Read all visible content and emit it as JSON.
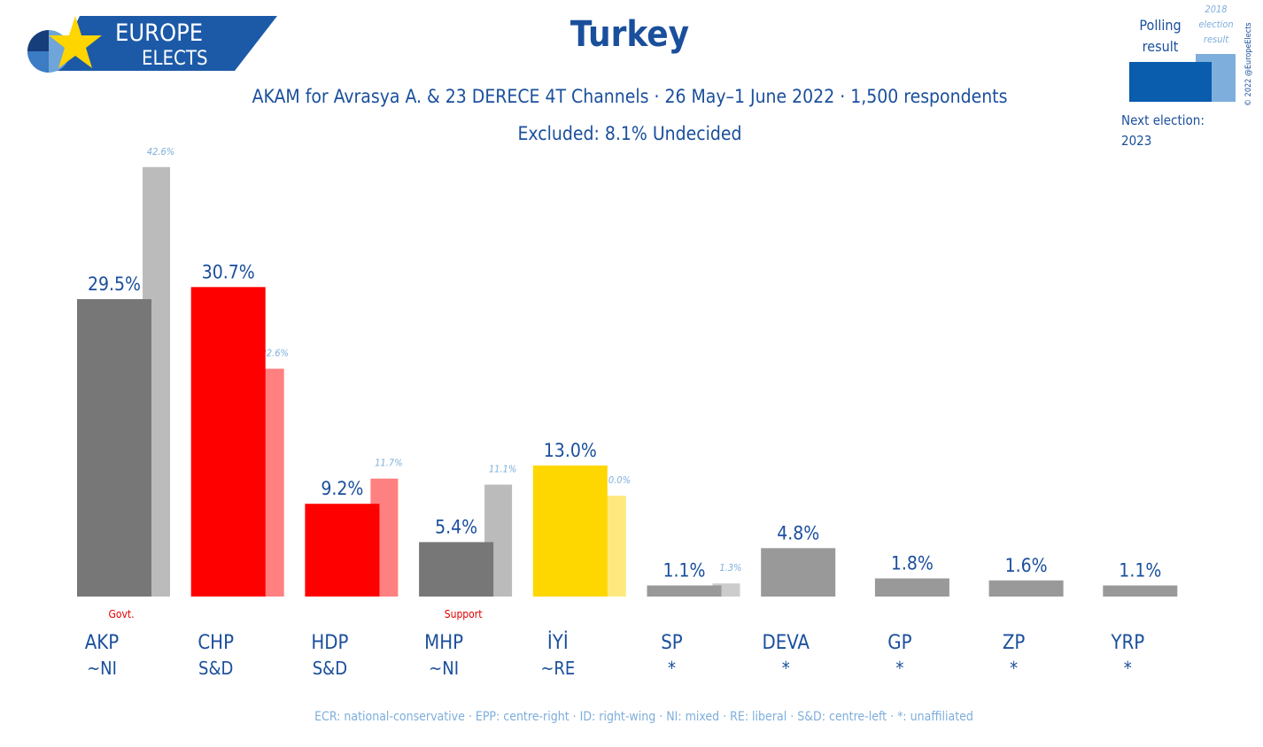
{
  "logo": {
    "line1": "EUROPE",
    "line2": "ELECTS"
  },
  "title": "Turkey",
  "subtitle": "AKAM for Avrasya A. & 23 DERECE 4T Channels · 26 May–1 June 2022 · 1,500 respondents",
  "excluded": "Excluded: 8.1% Undecided",
  "legend": {
    "polling": [
      "Polling",
      "result"
    ],
    "previous": [
      "2018",
      "election",
      "result"
    ],
    "copyright": "© 2022 @EuropeElects",
    "next_election_label": "Next election:",
    "next_election_year": "2023",
    "poll_color": "#0a5cad",
    "prev_color": "#7eaedb"
  },
  "footer": "ECR: national-conservative · EPP: centre-right · ID: right-wing · NI: mixed · RE: liberal · S&D: centre-left · *: unaffiliated",
  "chart_data": {
    "type": "bar",
    "categories": [
      "AKP",
      "CHP",
      "HDP",
      "MHP",
      "İYİ",
      "SP",
      "DEVA",
      "GP",
      "ZP",
      "YRP"
    ],
    "groups": [
      "~NI",
      "S&D",
      "S&D",
      "~NI",
      "~RE",
      "*",
      "*",
      "*",
      "*",
      "*"
    ],
    "notes": [
      "Govt.",
      "",
      "",
      "Support",
      "",
      "",
      "",
      "",
      "",
      ""
    ],
    "series": [
      {
        "name": "Polling result",
        "values": [
          29.5,
          30.7,
          9.2,
          5.4,
          13.0,
          1.1,
          4.8,
          1.8,
          1.6,
          1.1
        ],
        "labels": [
          "29.5%",
          "30.7%",
          "9.2%",
          "5.4%",
          "13.0%",
          "1.1%",
          "4.8%",
          "1.8%",
          "1.6%",
          "1.1%"
        ]
      },
      {
        "name": "2018 election result",
        "values": [
          42.6,
          22.6,
          11.7,
          11.1,
          10.0,
          1.3,
          null,
          null,
          null,
          null
        ],
        "labels": [
          "42.6%",
          "22.6%",
          "11.7%",
          "11.1%",
          "10.0%",
          "1.3%",
          "",
          "",
          "",
          ""
        ]
      }
    ],
    "colors": [
      "#777777",
      "#ff0000",
      "#ff0000",
      "#777777",
      "#ffd700",
      "#999999",
      "#999999",
      "#999999",
      "#999999",
      "#999999"
    ],
    "prev_colors": [
      "#bbbbbb",
      "#ff8080",
      "#ff8080",
      "#bbbbbb",
      "#ffe97f",
      "#cccccc",
      "",
      "",
      "",
      ""
    ],
    "note_color": "#e00000",
    "ylim": [
      0,
      45
    ],
    "grid": false
  }
}
